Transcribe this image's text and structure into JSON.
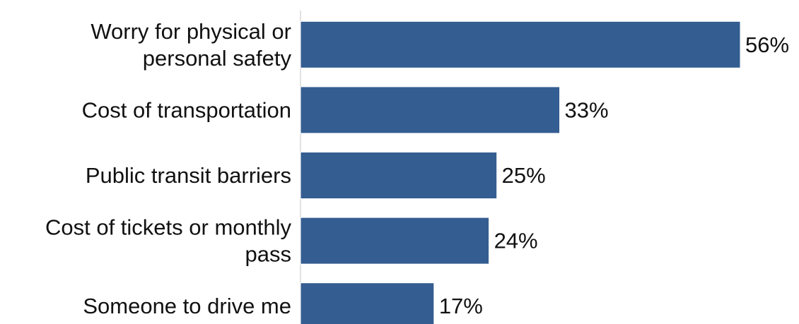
{
  "chart_data": {
    "type": "bar",
    "orientation": "horizontal",
    "categories": [
      [
        "Worry for physical or",
        "personal safety"
      ],
      [
        "Cost of transportation"
      ],
      [
        "Public transit barriers"
      ],
      [
        "Cost of tickets or monthly",
        "pass"
      ],
      [
        "Someone to drive me"
      ]
    ],
    "values": [
      56,
      33,
      25,
      24,
      17
    ],
    "value_labels": [
      "56%",
      "33%",
      "25%",
      "24%",
      "17%"
    ],
    "unit": "%",
    "xlim": [
      0,
      56
    ],
    "grid": false,
    "legend": "none",
    "colors": {
      "bar": "#345d91",
      "axis": "#d9d9d9",
      "text": "#111111"
    }
  }
}
